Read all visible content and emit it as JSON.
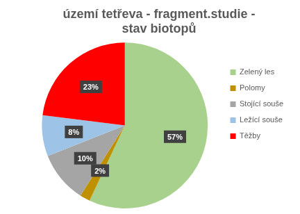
{
  "chart_data": {
    "type": "pie",
    "title": "území tetřeva - fragment.studie - stav biotopů",
    "categories": [
      "Zelený les",
      "Polomy",
      "Stojící souše",
      "Ležící souše",
      "Těžby"
    ],
    "values": [
      57,
      2,
      10,
      8,
      23
    ],
    "value_labels": [
      "57%",
      "2%",
      "10%",
      "8%",
      "23%"
    ],
    "colors": [
      "#a9d18e",
      "#bf9000",
      "#a5a5a5",
      "#9dc3e6",
      "#ff0000"
    ],
    "legend": "right",
    "data_labels": true
  }
}
